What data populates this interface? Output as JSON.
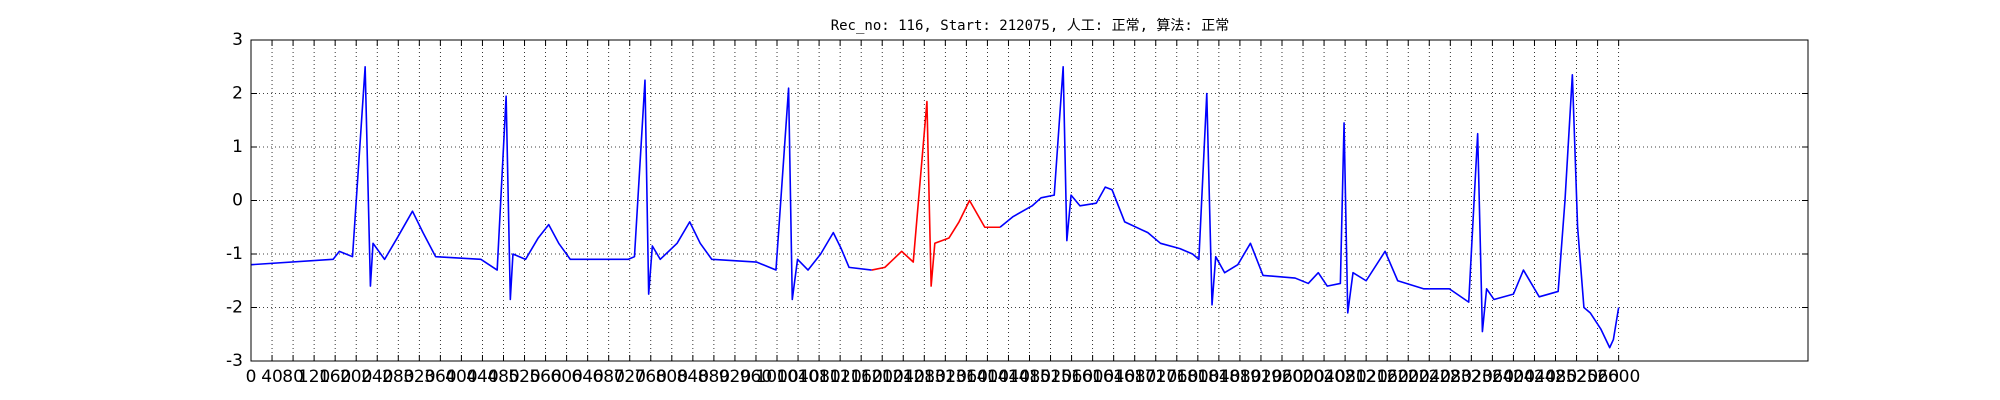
{
  "chart_data": {
    "type": "line",
    "title": "Rec_no: 116, Start: 212075, 人工: 正常, 算法: 正常",
    "series": [
      {
        "color": "#0000ff",
        "x": [
          0,
          156,
          168,
          193,
          217,
          227,
          232,
          254,
          278,
          307,
          327,
          351,
          437,
          468,
          485,
          493,
          498,
          522,
          546,
          566,
          585,
          607,
          717,
          729,
          749,
          756,
          763,
          778,
          810,
          834,
          854,
          876,
          961,
          998,
          1022,
          1029,
          1039,
          1059,
          1083,
          1107,
          1122,
          1137,
          1180
        ],
        "values": [
          -1.2,
          -1.1,
          -0.95,
          -1.05,
          2.5,
          -1.6,
          -0.8,
          -1.1,
          -0.7,
          -0.2,
          -0.6,
          -1.05,
          -1.1,
          -1.3,
          1.95,
          -1.85,
          -1.0,
          -1.1,
          -0.7,
          -0.45,
          -0.8,
          -1.1,
          -1.1,
          -1.05,
          2.25,
          -1.75,
          -0.85,
          -1.1,
          -0.8,
          -0.4,
          -0.8,
          -1.1,
          -1.15,
          -1.3,
          2.1,
          -1.85,
          -1.1,
          -1.3,
          -1.0,
          -0.6,
          -0.9,
          -1.25,
          -1.3
        ]
      },
      {
        "color": "#ff0000",
        "x": [
          1180,
          1205,
          1237,
          1259,
          1285,
          1293,
          1300,
          1327,
          1346,
          1366,
          1395,
          1424
        ],
        "values": [
          -1.3,
          -1.25,
          -0.95,
          -1.15,
          1.85,
          -1.6,
          -0.8,
          -0.7,
          -0.4,
          0.0,
          -0.5,
          -0.5
        ]
      },
      {
        "color": "#0000ff",
        "x": [
          1424,
          1449,
          1485,
          1502,
          1527,
          1544,
          1551,
          1559,
          1576,
          1607,
          1624,
          1637,
          1661,
          1705,
          1729,
          1766,
          1790,
          1802,
          1817,
          1827,
          1834,
          1851,
          1876,
          1900,
          1924,
          1985,
          2010,
          2029,
          2046,
          2071,
          2078,
          2085,
          2095,
          2120,
          2156,
          2180,
          2229,
          2278,
          2315,
          2332,
          2341,
          2349,
          2363,
          2400,
          2419,
          2449,
          2485,
          2498,
          2512,
          2522,
          2534,
          2546,
          2566,
          2583,
          2590,
          2600
        ],
        "values": [
          -0.5,
          -0.3,
          -0.1,
          0.05,
          0.1,
          2.5,
          -0.75,
          0.1,
          -0.1,
          -0.05,
          0.25,
          0.2,
          -0.4,
          -0.6,
          -0.8,
          -0.9,
          -1.0,
          -1.1,
          2.0,
          -1.95,
          -1.05,
          -1.35,
          -1.2,
          -0.8,
          -1.4,
          -1.45,
          -1.55,
          -1.35,
          -1.6,
          -1.55,
          1.45,
          -2.1,
          -1.35,
          -1.5,
          -0.95,
          -1.5,
          -1.65,
          -1.65,
          -1.9,
          1.25,
          -2.45,
          -1.65,
          -1.85,
          -1.75,
          -1.3,
          -1.8,
          -1.7,
          0.0,
          2.35,
          -0.5,
          -2.0,
          -2.1,
          -2.4,
          -2.75,
          -2.6,
          -2.0
        ]
      }
    ],
    "xlim": [
      0,
      2960
    ],
    "xticks": [
      0,
      40,
      80,
      120,
      160,
      200,
      240,
      280,
      320,
      360,
      400,
      440,
      480,
      520,
      560,
      600,
      640,
      680,
      720,
      760,
      800,
      840,
      880,
      920,
      960,
      1000,
      1040,
      1080,
      1120,
      1160,
      1200,
      1240,
      1280,
      1320,
      1360,
      1400,
      1440,
      1480,
      1520,
      1560,
      1600,
      1640,
      1680,
      1720,
      1760,
      1800,
      1840,
      1880,
      1920,
      1960,
      2000,
      2040,
      2080,
      2120,
      2160,
      2200,
      2240,
      2280,
      2320,
      2360,
      2400,
      2440,
      2480,
      2520,
      2560,
      2600
    ],
    "ylim": [
      -3,
      3
    ],
    "yticks": [
      -3,
      -2,
      -1,
      0,
      1,
      2,
      3
    ],
    "grid": true
  }
}
